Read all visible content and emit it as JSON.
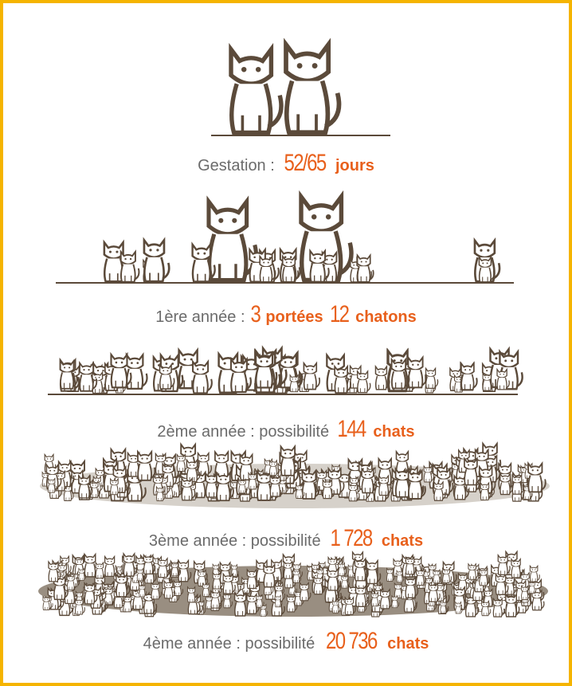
{
  "rows": [
    {
      "label": "Gestation :",
      "number": "52/65",
      "unit": "jours"
    },
    {
      "label": "1ère année :",
      "number": "3",
      "unit": "portées",
      "number2": "12",
      "unit2": "chatons"
    },
    {
      "label": "2ème année : possibilité",
      "number": "144",
      "unit": "chats"
    },
    {
      "label": "3ème année : possibilité",
      "number": "1 728",
      "unit": "chats"
    },
    {
      "label": "4ème année : possibilité",
      "number": "20 736",
      "unit": "chats"
    }
  ]
}
